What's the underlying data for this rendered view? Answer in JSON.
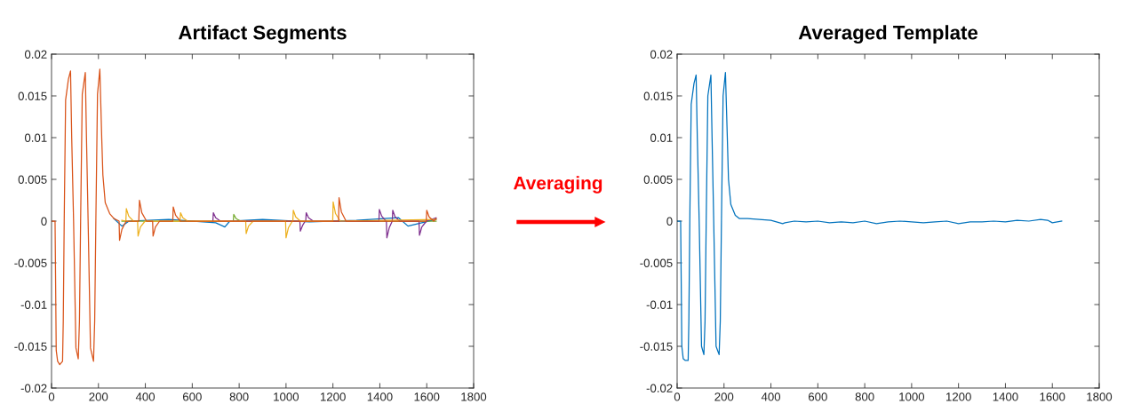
{
  "chart_data": [
    {
      "type": "line",
      "title": "Artifact Segments",
      "annotations": [
        "Averaging"
      ],
      "xlim": [
        0,
        1800
      ],
      "ylim": [
        -0.02,
        0.02
      ],
      "xticks": [
        0,
        200,
        400,
        600,
        800,
        1000,
        1200,
        1400,
        1600,
        1800
      ],
      "yticks": [
        -0.02,
        -0.015,
        -0.01,
        -0.005,
        0,
        0.005,
        0.01,
        0.015,
        0.02
      ],
      "grid": false,
      "series": [
        {
          "color": "#0072bd",
          "x": [
            266,
            300,
            330,
            500,
            700,
            739,
            760,
            900,
            1100,
            1300,
            1480,
            1520,
            1640
          ],
          "values": [
            0.0003,
            -0.0006,
            0,
            0.0002,
            -0.0002,
            -0.0007,
            0,
            0.0002,
            -0.0001,
            0.0001,
            0.0004,
            -0.0006,
            0.0002
          ]
        },
        {
          "color": "#77ac30",
          "x": [
            300,
            775,
            777,
            787,
            807,
            1640
          ],
          "values": [
            0,
            0,
            0.0008,
            0.0003,
            0,
            0
          ]
        },
        {
          "color": "#7e2f8e",
          "x": [
            688,
            690,
            700,
            720,
            1059,
            1061,
            1071,
            1082,
            1084,
            1086,
            1096,
            1116,
            1396,
            1398,
            1408,
            1426,
            1428,
            1430,
            1440,
            1453,
            1455,
            1465,
            1485,
            1567,
            1569,
            1579,
            1599,
            1640
          ],
          "values": [
            0,
            0.001,
            0.0004,
            0,
            0,
            -0.0012,
            -0.0005,
            0,
            0,
            0.001,
            0.0004,
            0,
            0,
            0.0014,
            0.0006,
            0,
            0,
            -0.002,
            -0.0008,
            0,
            0.0013,
            0.0005,
            0,
            0,
            -0.0017,
            -0.0007,
            0,
            0.0004
          ]
        },
        {
          "color": "#edb120",
          "x": [
            300,
            317,
            319,
            329,
            349,
            367,
            369,
            379,
            399,
            548,
            550,
            560,
            580,
            828,
            830,
            840,
            860,
            998,
            1000,
            1010,
            1027,
            1029,
            1031,
            1041,
            1061,
            1199,
            1201,
            1211,
            1231,
            1640
          ],
          "values": [
            0.0001,
            0,
            0.0015,
            0.0006,
            0,
            0,
            -0.0018,
            -0.0007,
            0,
            0,
            0.001,
            0.0004,
            0,
            0,
            -0.0015,
            -0.0006,
            0,
            0,
            -0.002,
            -0.0008,
            0,
            0,
            0.0013,
            0.0005,
            0,
            0,
            0.0023,
            0.0009,
            0,
            0.0002
          ]
        },
        {
          "color": "#d95319",
          "x": [
            0,
            15,
            20,
            26,
            35,
            47,
            50,
            54,
            60,
            72,
            81,
            86,
            94,
            104,
            114,
            119,
            124,
            131,
            144,
            149,
            156,
            166,
            179,
            184,
            189,
            196,
            206,
            214,
            219,
            229,
            248,
            266,
            288,
            290,
            300,
            318,
            372,
            375,
            385,
            405,
            431,
            433,
            443,
            461,
            517,
            519,
            529,
            549,
            1224,
            1226,
            1236,
            1256,
            1598,
            1600,
            1610,
            1630,
            1640
          ],
          "values": [
            0,
            0,
            -0.0155,
            -0.0168,
            -0.0172,
            -0.0168,
            -0.012,
            0,
            0.0145,
            0.017,
            0.018,
            0.01,
            0,
            -0.0152,
            -0.0165,
            -0.012,
            0,
            0.0152,
            0.0178,
            0.01,
            0,
            -0.0152,
            -0.0168,
            -0.012,
            0,
            0.0152,
            0.0182,
            0.01,
            0.0055,
            0.0022,
            0.0009,
            0.0003,
            0,
            -0.0023,
            -0.001,
            0,
            0,
            0.0025,
            0.001,
            0,
            0,
            -0.0018,
            -0.0007,
            0,
            0,
            0.0017,
            0.0007,
            0,
            0,
            0.0028,
            0.0011,
            0,
            0,
            0.0013,
            0.0005,
            0,
            0.0003
          ]
        }
      ]
    },
    {
      "type": "line",
      "title": "Averaged Template",
      "xlim": [
        0,
        1800
      ],
      "ylim": [
        -0.02,
        0.02
      ],
      "xticks": [
        0,
        200,
        400,
        600,
        800,
        1000,
        1200,
        1400,
        1600,
        1800
      ],
      "yticks": [
        -0.02,
        -0.015,
        -0.01,
        -0.005,
        0,
        0.005,
        0.01,
        0.015,
        0.02
      ],
      "grid": false,
      "series": [
        {
          "color": "#0072bd",
          "x": [
            0,
            15,
            20,
            26,
            35,
            47,
            50,
            54,
            60,
            72,
            81,
            86,
            94,
            104,
            114,
            119,
            124,
            131,
            144,
            149,
            156,
            166,
            179,
            184,
            189,
            196,
            206,
            214,
            219,
            229,
            248,
            266,
            300,
            350,
            400,
            450,
            460,
            500,
            550,
            600,
            650,
            700,
            750,
            800,
            850,
            900,
            950,
            1000,
            1050,
            1100,
            1150,
            1200,
            1250,
            1300,
            1350,
            1400,
            1450,
            1500,
            1550,
            1580,
            1600,
            1640
          ],
          "values": [
            0,
            0,
            -0.015,
            -0.0165,
            -0.0167,
            -0.0167,
            -0.012,
            0,
            0.014,
            0.0165,
            0.0175,
            0.01,
            0,
            -0.015,
            -0.016,
            -0.012,
            0,
            0.015,
            0.0175,
            0.01,
            0,
            -0.015,
            -0.016,
            -0.012,
            0,
            0.015,
            0.0178,
            0.01,
            0.005,
            0.002,
            0.0007,
            0.0003,
            0.0003,
            0.0002,
            0.0001,
            -0.0003,
            -0.0002,
            0,
            -0.0001,
            0,
            -0.0002,
            -0.0001,
            -0.0002,
            0,
            -0.0003,
            -0.0001,
            0,
            -0.0001,
            -0.0002,
            -0.0001,
            0,
            -0.0003,
            -0.0001,
            -0.0001,
            0,
            -0.0001,
            0.0001,
            0,
            0.0002,
            0.0001,
            -0.0002,
            0
          ]
        }
      ]
    }
  ]
}
